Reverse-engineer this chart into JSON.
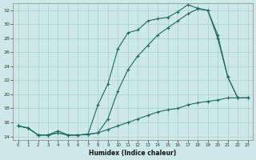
{
  "xlabel": "Humidex (Indice chaleur)",
  "background_color": "#cce8e8",
  "grid_color": "#aacccc",
  "line_color": "#1e6b5e",
  "xlim": [
    -0.5,
    23.5
  ],
  "ylim": [
    13.5,
    33.0
  ],
  "xticks": [
    0,
    1,
    2,
    3,
    4,
    5,
    6,
    7,
    8,
    9,
    10,
    11,
    12,
    13,
    14,
    15,
    16,
    17,
    18,
    19,
    20,
    21,
    22,
    23
  ],
  "yticks": [
    14,
    16,
    18,
    20,
    22,
    24,
    26,
    28,
    30,
    32
  ],
  "series1_x": [
    0,
    1,
    2,
    3,
    4,
    5,
    6,
    7,
    8,
    9,
    10,
    11,
    12,
    13,
    14,
    15,
    16,
    17,
    18,
    19,
    20,
    21,
    22,
    23
  ],
  "series1_y": [
    15.5,
    15.2,
    14.2,
    14.2,
    14.8,
    14.2,
    14.2,
    14.3,
    18.5,
    21.5,
    26.5,
    28.8,
    29.2,
    30.5,
    30.8,
    31.0,
    31.8,
    32.8,
    32.3,
    32.0,
    28.5,
    22.5,
    19.5,
    19.5
  ],
  "series2_x": [
    0,
    1,
    2,
    3,
    4,
    5,
    6,
    7,
    8,
    9,
    10,
    11,
    12,
    13,
    14,
    15,
    16,
    17,
    18,
    19,
    20,
    21,
    22,
    23
  ],
  "series2_y": [
    15.5,
    15.2,
    14.2,
    14.2,
    14.5,
    14.2,
    14.2,
    14.3,
    14.5,
    16.5,
    20.5,
    23.5,
    25.5,
    27.0,
    28.5,
    29.5,
    30.5,
    31.5,
    32.2,
    32.0,
    28.0,
    22.5,
    19.5,
    19.5
  ],
  "series3_x": [
    0,
    1,
    2,
    3,
    4,
    5,
    6,
    7,
    8,
    9,
    10,
    11,
    12,
    13,
    14,
    15,
    16,
    17,
    18,
    19,
    20,
    21,
    22,
    23
  ],
  "series3_y": [
    15.5,
    15.2,
    14.2,
    14.2,
    14.5,
    14.2,
    14.2,
    14.3,
    14.5,
    15.0,
    15.5,
    16.0,
    16.5,
    17.0,
    17.5,
    17.8,
    18.0,
    18.5,
    18.8,
    19.0,
    19.2,
    19.5,
    19.5,
    19.5
  ]
}
